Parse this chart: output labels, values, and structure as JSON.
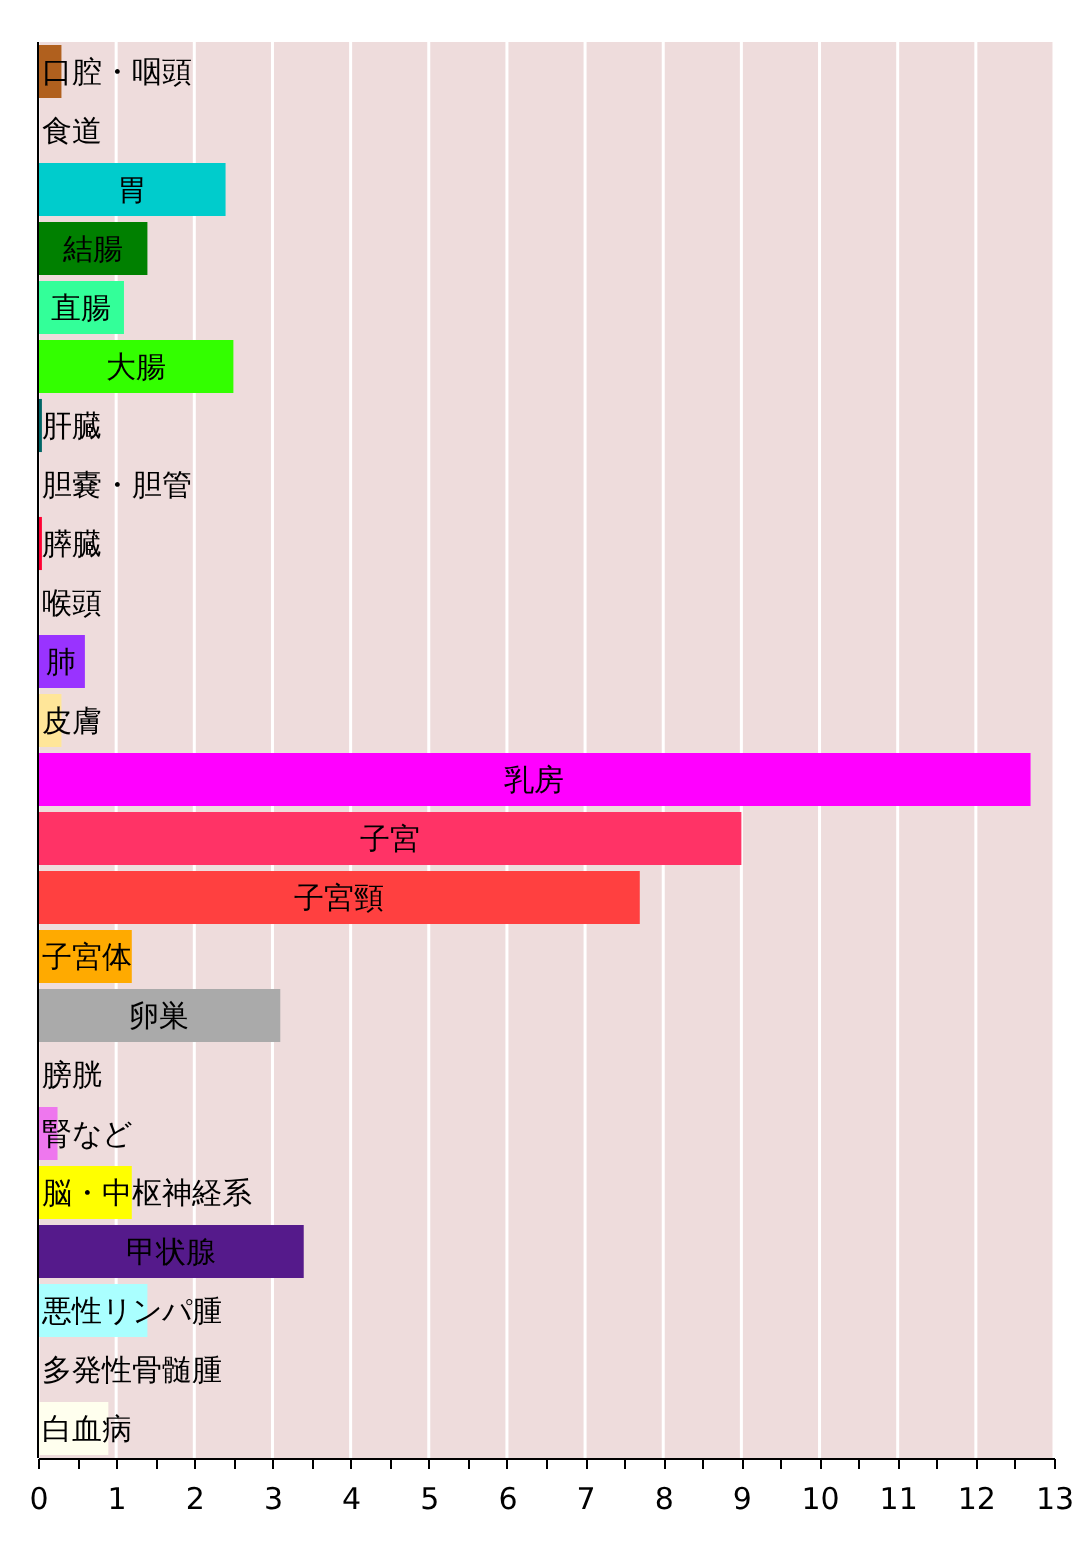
{
  "chart_data": {
    "type": "bar",
    "orientation": "horizontal",
    "categories": [
      "口腔・咽頭",
      "食道",
      "胃",
      "結腸",
      "直腸",
      "大腸",
      "肝臓",
      "胆嚢・胆管",
      "膵臓",
      "喉頭",
      "肺",
      "皮膚",
      "乳房",
      "子宮",
      "子宮頸",
      "子宮体",
      "卵巣",
      "膀胱",
      "腎など",
      "脳・中枢神経系",
      "甲状腺",
      "悪性リンパ腫",
      "多発性骨髄腫",
      "白血病"
    ],
    "values": [
      0.3,
      0,
      2.4,
      1.4,
      1.1,
      2.5,
      0.05,
      0,
      0.05,
      0,
      0.6,
      0.3,
      12.7,
      9.0,
      7.7,
      1.2,
      3.1,
      0,
      0.25,
      1.2,
      3.4,
      1.4,
      0,
      0.9
    ],
    "colors": [
      "#b0601e",
      "#999999",
      "#00cccc",
      "#008000",
      "#33ff99",
      "#33ff00",
      "#006666",
      "#999999",
      "#ff0033",
      "#999999",
      "#9933ff",
      "#ffe699",
      "#ff00ff",
      "#ff3366",
      "#ff4040",
      "#ffaa00",
      "#aaaaaa",
      "#999999",
      "#ee77ee",
      "#ffff00",
      "#551a8b",
      "#aaffff",
      "#999999",
      "#ffffee"
    ],
    "xlim": [
      0,
      13
    ],
    "xticks": [
      0,
      {
        "value": 0.5,
        "label": null
      },
      1,
      {
        "value": 1.5,
        "label": null
      },
      2,
      {
        "value": 2.5,
        "label": null
      },
      3,
      {
        "value": 3.5,
        "label": null
      },
      4,
      {
        "value": 4.5,
        "label": null
      },
      5,
      {
        "value": 5.5,
        "label": null
      },
      6,
      {
        "value": 6.5,
        "label": null
      },
      7,
      {
        "value": 7.5,
        "label": null
      },
      8,
      {
        "value": 8.5,
        "label": null
      },
      9,
      {
        "value": 9.5,
        "label": null
      },
      10,
      {
        "value": 10.5,
        "label": null
      },
      11,
      {
        "value": 11.5,
        "label": null
      },
      12,
      {
        "value": 12.5,
        "label": null
      },
      13
    ],
    "grid": "x"
  }
}
